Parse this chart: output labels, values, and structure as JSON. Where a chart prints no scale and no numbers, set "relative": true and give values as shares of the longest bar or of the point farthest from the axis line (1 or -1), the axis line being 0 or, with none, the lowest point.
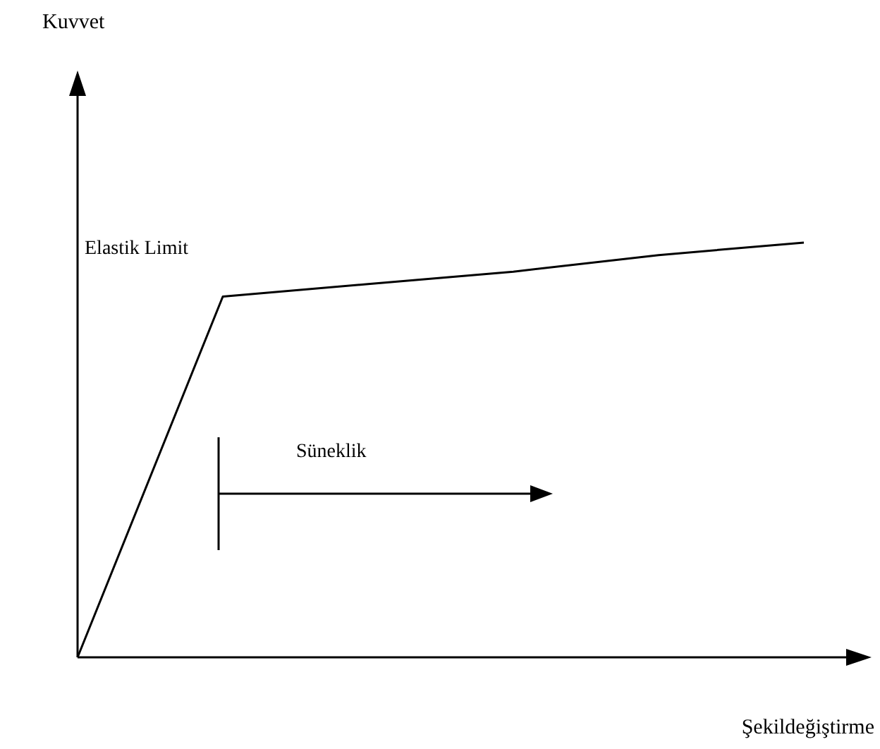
{
  "chart_data": {
    "type": "line",
    "relative": true,
    "xlabel": "Şekildeğiştirme",
    "line_style": "solid",
    "categories": [
      null,
      null,
      null,
      null,
      null,
      null
    ],
    "series": [
      {
        "color": "#000000",
        "values": [
          0,
          0.87,
          0.9,
          0.93,
          0.97,
          1
        ]
      }
    ],
    "annotations": [
      "Kuvvet",
      "Elastik Limit",
      "Süneklik"
    ]
  }
}
